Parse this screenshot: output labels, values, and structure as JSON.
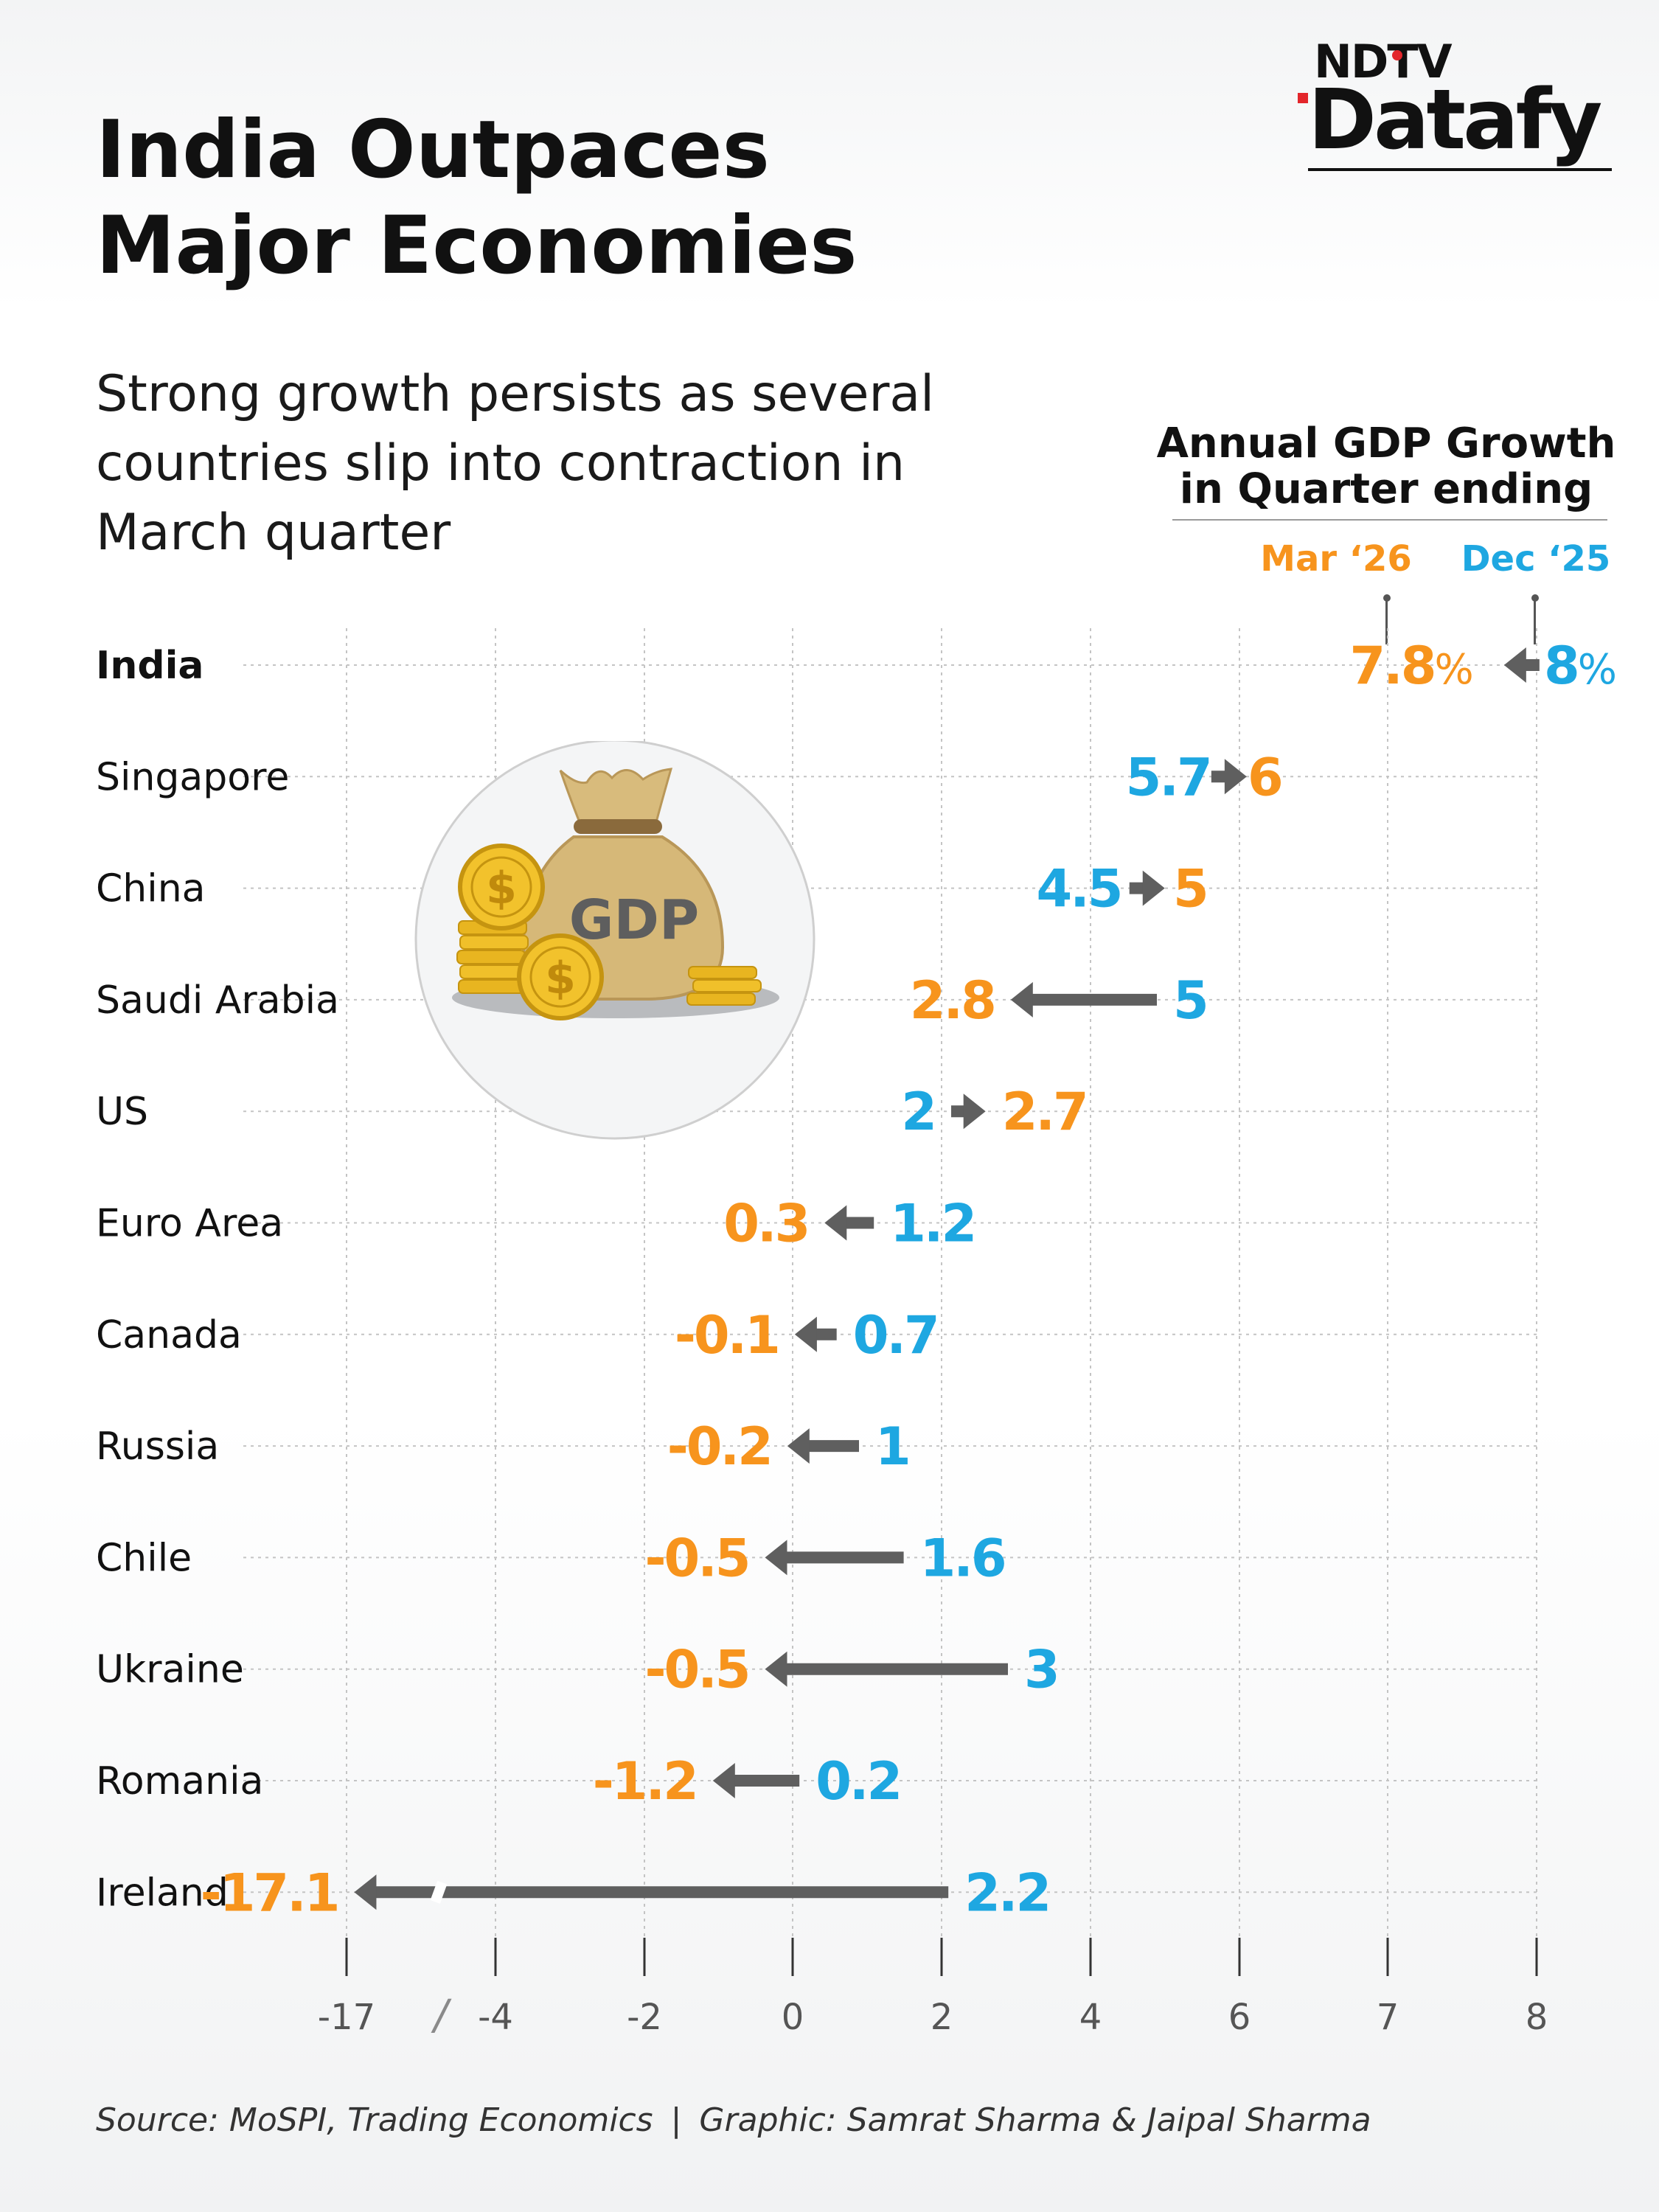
{
  "brand": {
    "top": "NDTV",
    "main": "Datafy"
  },
  "title_line1": "India Outpaces",
  "title_line2": "Major Economies",
  "subtitle_lines": [
    "Strong growth persists as several",
    "countries slip into contraction in",
    "March quarter"
  ],
  "legend": {
    "title_line1": "Annual GDP Growth",
    "title_line2": "in Quarter ending",
    "current_label": "Mar ‘26",
    "previous_label": "Dec ‘25"
  },
  "illustration_text": "GDP",
  "colors": {
    "current": "#f7941d",
    "previous": "#1ea7e1",
    "arrow": "#5f5f5f",
    "grid": "#c4c4c4"
  },
  "chart_data": {
    "type": "dumbbell-arrow",
    "unit": "%",
    "categories": [
      "India",
      "Singapore",
      "China",
      "Saudi Arabia",
      "US",
      "Euro Area",
      "Canada",
      "Russia",
      "Chile",
      "Ukraine",
      "Romania",
      "Ireland"
    ],
    "series": [
      {
        "name": "Dec ‘25",
        "values": [
          8,
          5.7,
          4.5,
          5,
          2,
          1.2,
          0.7,
          1,
          1.6,
          3,
          0.2,
          2.2
        ]
      },
      {
        "name": "Mar ‘26",
        "values": [
          7.8,
          6,
          5,
          2.8,
          2.7,
          0.3,
          -0.1,
          -0.2,
          -0.5,
          -0.5,
          -1.2,
          -17.1
        ]
      }
    ],
    "labels": {
      "Dec ‘25": [
        "8",
        "5.7",
        "4.5",
        "5",
        "2",
        "1.2",
        "0.7",
        "1",
        "1.6",
        "3",
        "0.2",
        "2.2"
      ],
      "Mar ‘26": [
        "7.8",
        "6",
        "5",
        "2.8",
        "2.7",
        "0.3",
        "-0.1",
        "-0.2",
        "-0.5",
        "-0.5",
        "-1.2",
        "-17.1"
      ]
    },
    "x_ticks": [
      "-17",
      "-4",
      "-2",
      "0",
      "2",
      "4",
      "6",
      "7",
      "8"
    ],
    "x_axis_break": "/",
    "bold_categories": [
      "India"
    ],
    "grid": true
  },
  "footer": {
    "source": "Source: MoSPI, Trading Economics",
    "separator": "|",
    "credit": "Graphic: Samrat Sharma & Jaipal Sharma"
  }
}
